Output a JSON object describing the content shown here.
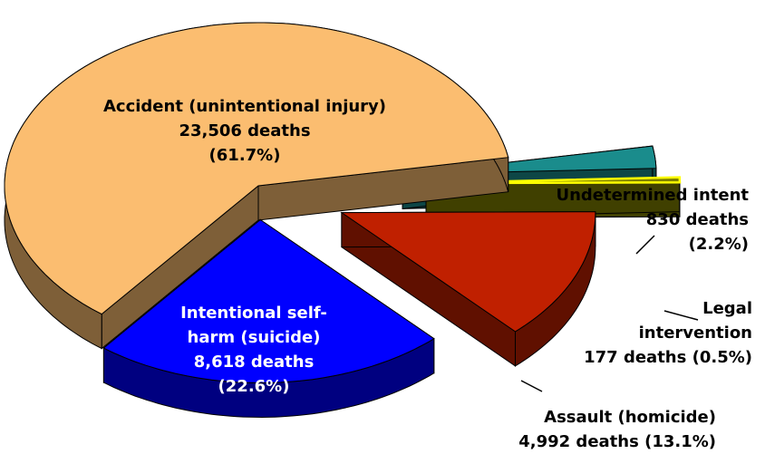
{
  "chart_data": {
    "type": "pie",
    "pie_style": "3d-exploded",
    "categories": [
      "Accident (unintentional injury)",
      "Intentional self-harm (suicide)",
      "Assault (homicide)",
      "Legal intervention",
      "Undetermined intent"
    ],
    "values": [
      61.7,
      22.6,
      13.1,
      0.5,
      2.2
    ],
    "value_labels": [
      "(61.7%)",
      "(22.6%)",
      "(13.1%)",
      "(0.5%)",
      "(2.2%)"
    ],
    "deaths": [
      23506,
      8618,
      4992,
      177,
      830
    ],
    "deaths_labels": [
      "23,506 deaths",
      "8,618 deaths",
      "4,992 deaths",
      "177 deaths",
      "830 deaths"
    ],
    "colors": [
      "#FBBD70",
      "#0000FF",
      "#C02000",
      "#808000",
      "#1A8C8C"
    ]
  }
}
